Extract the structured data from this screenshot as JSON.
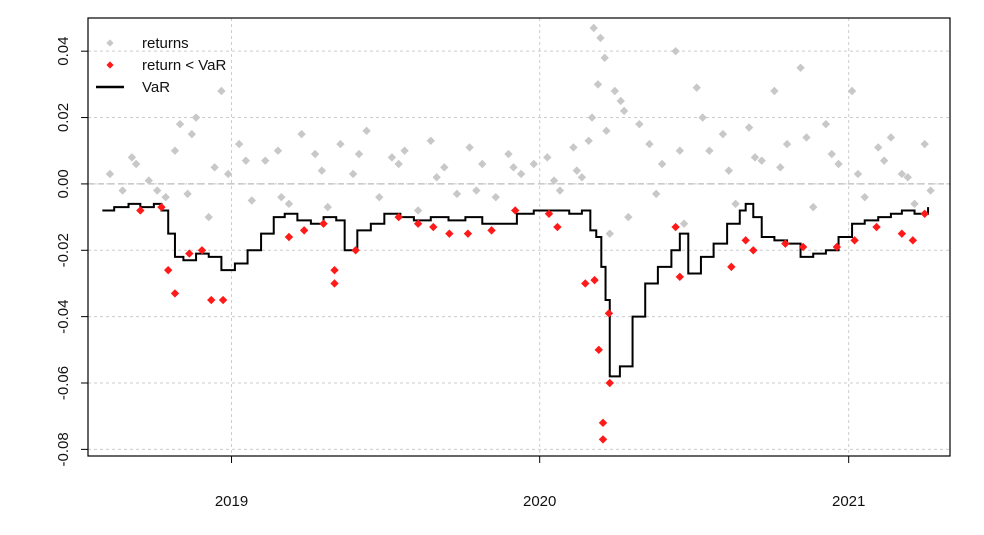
{
  "chart_data": {
    "type": "scatter",
    "title": "",
    "xlabel": "",
    "ylabel": "",
    "xlim": [
      "2018-07-15",
      "2021-05-01"
    ],
    "ylim": [
      -0.082,
      0.05
    ],
    "grid": true,
    "legend_position": "top-left",
    "x_ticks": [
      {
        "date": "2019-01-01",
        "label": "2019"
      },
      {
        "date": "2020-01-01",
        "label": "2020"
      },
      {
        "date": "2021-01-01",
        "label": "2021"
      }
    ],
    "y_ticks": [
      {
        "value": 0.04,
        "label": "0.04"
      },
      {
        "value": 0.02,
        "label": "0.02"
      },
      {
        "value": 0.0,
        "label": "0.00"
      },
      {
        "value": -0.02,
        "label": "-0.02"
      },
      {
        "value": -0.04,
        "label": "-0.04"
      },
      {
        "value": -0.06,
        "label": "-0.06"
      },
      {
        "value": -0.08,
        "label": "-0.08"
      }
    ],
    "colors": {
      "returns": "#c8c8c8",
      "breach": "#ff1a1a",
      "var": "#000000",
      "grid": "#cccccc",
      "zero": "#bbbbbb"
    },
    "series": [
      {
        "name": "returns",
        "kind": "points",
        "x": [
          "2018-08-10",
          "2018-08-25",
          "2018-09-10",
          "2018-09-25",
          "2018-10-15",
          "2018-10-26",
          "2018-11-01",
          "2018-11-10",
          "2018-11-20",
          "2018-12-05",
          "2018-12-20",
          "2018-12-28",
          "2019-01-10",
          "2019-01-25",
          "2019-02-10",
          "2019-02-25",
          "2019-03-10",
          "2019-03-25",
          "2019-04-10",
          "2019-04-25",
          "2019-05-10",
          "2019-05-25",
          "2019-06-10",
          "2019-06-25",
          "2019-07-10",
          "2019-07-25",
          "2019-08-10",
          "2019-08-25",
          "2019-09-10",
          "2019-09-25",
          "2019-10-10",
          "2019-10-25",
          "2019-11-10",
          "2019-11-25",
          "2019-12-10",
          "2019-12-25",
          "2020-01-10",
          "2020-01-25",
          "2020-02-10",
          "2020-02-20",
          "2020-02-28",
          "2020-03-05",
          "2020-03-10",
          "2020-03-13",
          "2020-03-18",
          "2020-03-24",
          "2020-03-30",
          "2020-04-06",
          "2020-04-15",
          "2020-04-28",
          "2020-05-10",
          "2020-05-25",
          "2020-06-10",
          "2020-06-20",
          "2020-07-05",
          "2020-07-20",
          "2020-08-05",
          "2020-08-20",
          "2020-09-05",
          "2020-09-20",
          "2020-10-05",
          "2020-10-20",
          "2020-11-05",
          "2020-11-20",
          "2020-12-05",
          "2020-12-20",
          "2021-01-05",
          "2021-01-20",
          "2021-02-05",
          "2021-02-20",
          "2021-03-05",
          "2021-03-20",
          "2021-04-01",
          "2021-04-08",
          "2018-09-05",
          "2018-10-05",
          "2018-11-15",
          "2018-12-12",
          "2019-01-18",
          "2019-03-01",
          "2019-04-18",
          "2019-06-01",
          "2019-07-18",
          "2019-09-01",
          "2019-10-18",
          "2019-12-01",
          "2020-01-18",
          "2020-02-14",
          "2020-03-03",
          "2020-03-20",
          "2020-04-10",
          "2020-05-18",
          "2020-06-15",
          "2020-07-12",
          "2020-08-12",
          "2020-09-12",
          "2020-10-12",
          "2020-11-12",
          "2020-12-12",
          "2021-01-12",
          "2021-02-12",
          "2021-03-12"
        ],
        "y": [
          0.003,
          -0.002,
          0.006,
          0.001,
          -0.004,
          0.01,
          0.018,
          -0.003,
          0.02,
          -0.01,
          0.028,
          0.003,
          0.012,
          -0.005,
          0.007,
          0.01,
          -0.006,
          0.015,
          0.009,
          -0.007,
          0.012,
          0.003,
          0.016,
          -0.004,
          0.008,
          0.01,
          -0.008,
          0.013,
          0.005,
          -0.003,
          0.011,
          0.006,
          -0.004,
          0.009,
          0.003,
          0.006,
          0.008,
          -0.002,
          0.011,
          0.002,
          0.013,
          0.047,
          0.03,
          0.044,
          0.038,
          -0.015,
          0.028,
          0.025,
          -0.01,
          0.018,
          0.012,
          0.006,
          0.04,
          -0.012,
          0.029,
          0.01,
          0.015,
          -0.006,
          0.017,
          0.007,
          0.028,
          0.012,
          0.035,
          -0.007,
          0.018,
          0.006,
          0.028,
          -0.004,
          0.011,
          0.014,
          0.003,
          -0.006,
          0.012,
          -0.002,
          0.008,
          -0.002,
          0.015,
          0.005,
          0.007,
          -0.004,
          0.004,
          0.009,
          0.006,
          0.002,
          -0.002,
          0.005,
          0.001,
          0.004,
          0.02,
          0.016,
          0.022,
          -0.003,
          0.01,
          0.02,
          0.004,
          0.008,
          0.005,
          0.014,
          0.009,
          0.003,
          0.007,
          0.002
        ]
      },
      {
        "name": "return < VaR",
        "kind": "points",
        "x": [
          "2018-09-15",
          "2018-10-10",
          "2018-10-18",
          "2018-10-26",
          "2018-11-12",
          "2018-11-27",
          "2018-12-08",
          "2018-12-22",
          "2019-03-10",
          "2019-03-28",
          "2019-04-20",
          "2019-05-03",
          "2019-05-03",
          "2019-05-28",
          "2019-07-18",
          "2019-08-10",
          "2019-08-28",
          "2019-09-16",
          "2019-10-08",
          "2019-11-05",
          "2019-12-03",
          "2020-01-12",
          "2020-01-22",
          "2020-02-24",
          "2020-03-06",
          "2020-03-11",
          "2020-03-16",
          "2020-03-16",
          "2020-03-23",
          "2020-03-24",
          "2020-06-10",
          "2020-06-15",
          "2020-08-15",
          "2020-09-01",
          "2020-09-10",
          "2020-10-18",
          "2020-11-08",
          "2020-12-18",
          "2021-01-08",
          "2021-02-03",
          "2021-03-05",
          "2021-03-18",
          "2021-04-01"
        ],
        "y": [
          -0.008,
          -0.007,
          -0.026,
          -0.033,
          -0.021,
          -0.02,
          -0.035,
          -0.035,
          -0.016,
          -0.014,
          -0.012,
          -0.026,
          -0.03,
          -0.02,
          -0.01,
          -0.012,
          -0.013,
          -0.015,
          -0.015,
          -0.014,
          -0.008,
          -0.009,
          -0.013,
          -0.03,
          -0.029,
          -0.05,
          -0.077,
          -0.072,
          -0.039,
          -0.06,
          -0.013,
          -0.028,
          -0.025,
          -0.017,
          -0.02,
          -0.018,
          -0.019,
          -0.019,
          -0.017,
          -0.013,
          -0.015,
          -0.017,
          -0.009
        ]
      },
      {
        "name": "VaR",
        "kind": "line",
        "x": [
          "2018-08-01",
          "2018-08-15",
          "2018-09-01",
          "2018-09-15",
          "2018-10-01",
          "2018-10-10",
          "2018-10-18",
          "2018-10-26",
          "2018-11-05",
          "2018-11-20",
          "2018-12-05",
          "2018-12-20",
          "2019-01-05",
          "2019-01-20",
          "2019-02-05",
          "2019-02-20",
          "2019-03-05",
          "2019-03-20",
          "2019-04-05",
          "2019-04-20",
          "2019-05-05",
          "2019-05-15",
          "2019-05-30",
          "2019-06-15",
          "2019-07-01",
          "2019-07-20",
          "2019-08-05",
          "2019-08-25",
          "2019-09-15",
          "2019-10-05",
          "2019-10-25",
          "2019-11-15",
          "2019-12-05",
          "2019-12-25",
          "2020-01-15",
          "2020-02-05",
          "2020-02-20",
          "2020-03-01",
          "2020-03-08",
          "2020-03-14",
          "2020-03-19",
          "2020-03-24",
          "2020-04-05",
          "2020-04-20",
          "2020-05-05",
          "2020-05-20",
          "2020-06-05",
          "2020-06-15",
          "2020-06-25",
          "2020-07-10",
          "2020-07-25",
          "2020-08-10",
          "2020-08-25",
          "2020-09-01",
          "2020-09-10",
          "2020-09-20",
          "2020-10-05",
          "2020-10-20",
          "2020-11-05",
          "2020-11-20",
          "2020-12-05",
          "2020-12-20",
          "2021-01-05",
          "2021-01-20",
          "2021-02-05",
          "2021-02-20",
          "2021-03-05",
          "2021-03-20",
          "2021-04-05"
        ],
        "y": [
          -0.008,
          -0.007,
          -0.006,
          -0.007,
          -0.006,
          -0.008,
          -0.015,
          -0.022,
          -0.023,
          -0.021,
          -0.022,
          -0.026,
          -0.024,
          -0.02,
          -0.015,
          -0.01,
          -0.009,
          -0.011,
          -0.012,
          -0.01,
          -0.011,
          -0.02,
          -0.014,
          -0.012,
          -0.009,
          -0.01,
          -0.011,
          -0.01,
          -0.011,
          -0.01,
          -0.012,
          -0.012,
          -0.009,
          -0.008,
          -0.008,
          -0.009,
          -0.008,
          -0.014,
          -0.016,
          -0.025,
          -0.035,
          -0.058,
          -0.055,
          -0.04,
          -0.03,
          -0.025,
          -0.02,
          -0.015,
          -0.027,
          -0.022,
          -0.018,
          -0.012,
          -0.008,
          -0.006,
          -0.01,
          -0.016,
          -0.017,
          -0.018,
          -0.022,
          -0.021,
          -0.02,
          -0.016,
          -0.012,
          -0.011,
          -0.01,
          -0.009,
          -0.008,
          -0.009,
          -0.007
        ]
      }
    ],
    "legend": [
      {
        "label": "returns",
        "marker": "diamond",
        "color": "#c8c8c8"
      },
      {
        "label": "return < VaR",
        "marker": "diamond",
        "color": "#ff1a1a"
      },
      {
        "label": "VaR",
        "marker": "line",
        "color": "#000000"
      }
    ]
  }
}
